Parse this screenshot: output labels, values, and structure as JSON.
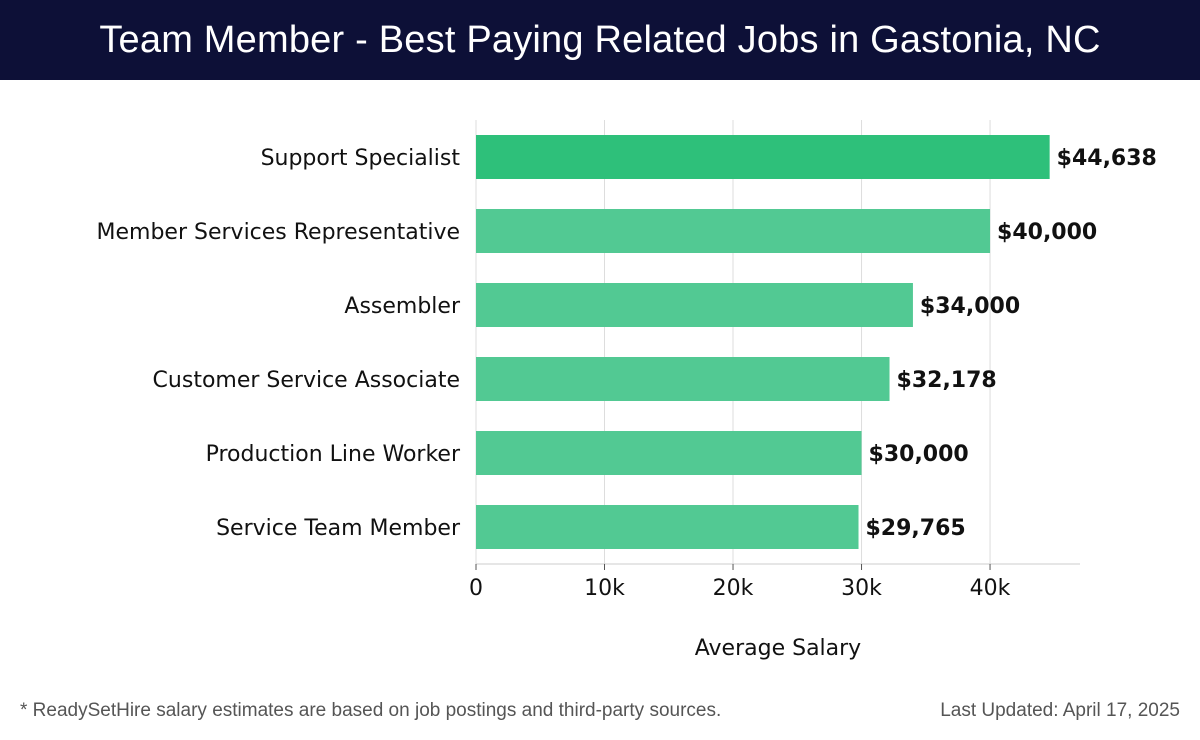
{
  "header": {
    "title": "Team Member - Best Paying Related Jobs in Gastonia, NC"
  },
  "chart_data": {
    "type": "bar",
    "orientation": "horizontal",
    "categories": [
      "Support Specialist",
      "Member Services Representative",
      "Assembler",
      "Customer Service Associate",
      "Production Line Worker",
      "Service Team Member"
    ],
    "values": [
      44638,
      40000,
      34000,
      32178,
      30000,
      29765
    ],
    "data_labels": [
      "$44,638",
      "$40,000",
      "$34,000",
      "$32,178",
      "$30,000",
      "$29,765"
    ],
    "xlabel": "Average Salary",
    "ylabel": "",
    "xlim": [
      0,
      47000
    ],
    "xticks": [
      0,
      10000,
      20000,
      30000,
      40000
    ],
    "xtick_labels": [
      "0",
      "10k",
      "20k",
      "30k",
      "40k"
    ],
    "grid": true,
    "colors": {
      "top": "#2ec07a",
      "rest": "#52c993"
    }
  },
  "footer": {
    "note": "* ReadySetHire salary estimates are based on job postings and third-party sources.",
    "updated": "Last Updated: April 17, 2025"
  }
}
